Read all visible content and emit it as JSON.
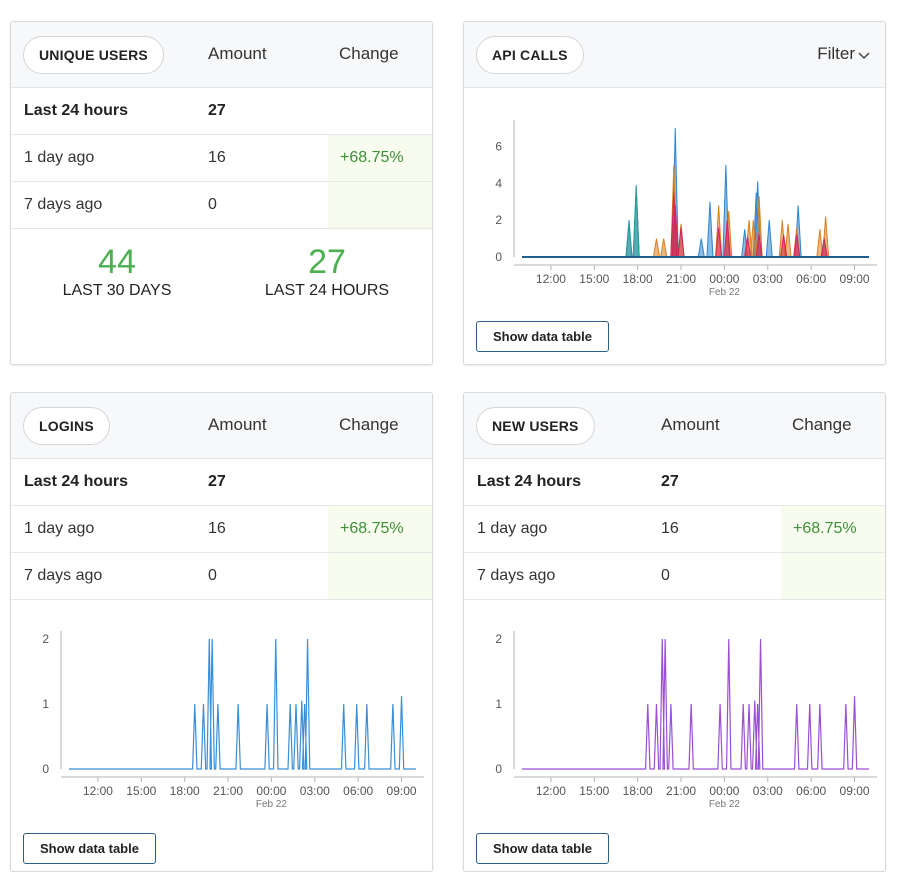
{
  "colors": {
    "accent_green": "#4caf50",
    "change_green": "#3f8f3a",
    "logins_line": "#3a8fd6",
    "newusers_line": "#9b4fd1",
    "button_border": "#2b5f8c"
  },
  "unique_users": {
    "title": "UNIQUE USERS",
    "col_amount": "Amount",
    "col_change": "Change",
    "rows": [
      {
        "label": "Last 24 hours",
        "amount": "27",
        "change": ""
      },
      {
        "label": "1 day ago",
        "amount": "16",
        "change": "+68.75%"
      },
      {
        "label": "7 days ago",
        "amount": "0",
        "change": ""
      }
    ],
    "stats": [
      {
        "value": "44",
        "label": "LAST 30 DAYS"
      },
      {
        "value": "27",
        "label": "LAST 24 HOURS"
      }
    ]
  },
  "api_calls": {
    "title": "API CALLS",
    "filter_label": "Filter",
    "filter_icon": "chevron-down-icon",
    "button": "Show data table"
  },
  "logins": {
    "title": "LOGINS",
    "col_amount": "Amount",
    "col_change": "Change",
    "rows": [
      {
        "label": "Last 24 hours",
        "amount": "27",
        "change": ""
      },
      {
        "label": "1 day ago",
        "amount": "16",
        "change": "+68.75%"
      },
      {
        "label": "7 days ago",
        "amount": "0",
        "change": ""
      }
    ],
    "button": "Show data table"
  },
  "new_users": {
    "title": "NEW USERS",
    "col_amount": "Amount",
    "col_change": "Change",
    "rows": [
      {
        "label": "Last 24 hours",
        "amount": "27",
        "change": ""
      },
      {
        "label": "1 day ago",
        "amount": "16",
        "change": "+68.75%"
      },
      {
        "label": "7 days ago",
        "amount": "0",
        "change": ""
      }
    ],
    "button": "Show data table"
  },
  "chart_data": [
    {
      "id": "api",
      "type": "area",
      "x_ticks": [
        "12:00",
        "15:00",
        "18:00",
        "21:00",
        "00:00",
        "03:00",
        "06:00",
        "09:00"
      ],
      "x_sublabel": "Feb 22",
      "y_ticks": [
        0,
        2,
        4,
        6
      ],
      "ylim": [
        0,
        7
      ],
      "x_range_hours": [
        10,
        34
      ],
      "series": [
        {
          "color": "#2e86cf",
          "points": [
            [
              17.4,
              2
            ],
            [
              17.9,
              3.9
            ],
            [
              20.6,
              7
            ],
            [
              22.4,
              1
            ],
            [
              23.0,
              3
            ],
            [
              24.1,
              5
            ],
            [
              25.4,
              1.5
            ],
            [
              26.2,
              3.5
            ],
            [
              26.3,
              4.1
            ],
            [
              27.1,
              2
            ],
            [
              29.1,
              2.8
            ],
            [
              30.9,
              1
            ]
          ]
        },
        {
          "color": "#2a9d8f",
          "points": [
            [
              17.4,
              1.8
            ],
            [
              17.9,
              3.8
            ]
          ]
        },
        {
          "color": "#d9801f",
          "points": [
            [
              19.3,
              1
            ],
            [
              19.8,
              1
            ],
            [
              20.5,
              5
            ],
            [
              21.0,
              1.8
            ],
            [
              23.6,
              2.8
            ],
            [
              24.3,
              2.5
            ],
            [
              25.7,
              2
            ],
            [
              26.0,
              2
            ],
            [
              26.4,
              3.3
            ],
            [
              28.0,
              2
            ],
            [
              28.4,
              1.8
            ],
            [
              29.0,
              1.6
            ],
            [
              30.6,
              1.5
            ],
            [
              31.0,
              2.2
            ]
          ]
        },
        {
          "color": "#d3245a",
          "points": [
            [
              20.5,
              3.5
            ],
            [
              20.6,
              2.8
            ],
            [
              21.0,
              1.6
            ],
            [
              23.6,
              1.6
            ],
            [
              24.2,
              2
            ],
            [
              25.6,
              1.1
            ],
            [
              26.4,
              1.2
            ],
            [
              28.1,
              1.2
            ],
            [
              29.0,
              1.2
            ],
            [
              30.9,
              1
            ]
          ]
        }
      ]
    },
    {
      "id": "logins",
      "type": "line",
      "x_ticks": [
        "12:00",
        "15:00",
        "18:00",
        "21:00",
        "00:00",
        "03:00",
        "06:00",
        "09:00"
      ],
      "x_sublabel": "Feb 22",
      "y_ticks": [
        0,
        1,
        2
      ],
      "ylim": [
        0,
        2
      ],
      "x_range_hours": [
        10,
        34
      ],
      "peaks": [
        [
          18.7,
          1
        ],
        [
          19.3,
          1
        ],
        [
          19.7,
          2
        ],
        [
          19.9,
          2
        ],
        [
          20.3,
          1
        ],
        [
          21.7,
          1
        ],
        [
          23.7,
          1
        ],
        [
          24.3,
          2
        ],
        [
          25.3,
          1
        ],
        [
          25.7,
          1
        ],
        [
          26.1,
          1.05
        ],
        [
          26.3,
          1
        ],
        [
          26.5,
          2
        ],
        [
          29.0,
          1
        ],
        [
          29.9,
          1
        ],
        [
          30.6,
          1
        ],
        [
          32.4,
          1
        ],
        [
          33.0,
          1.12
        ]
      ]
    },
    {
      "id": "new_users",
      "type": "line",
      "x_ticks": [
        "12:00",
        "15:00",
        "18:00",
        "21:00",
        "00:00",
        "03:00",
        "06:00",
        "09:00"
      ],
      "x_sublabel": "Feb 22",
      "y_ticks": [
        0,
        1,
        2
      ],
      "ylim": [
        0,
        2
      ],
      "x_range_hours": [
        10,
        34
      ],
      "peaks": [
        [
          18.7,
          1
        ],
        [
          19.3,
          1
        ],
        [
          19.7,
          2
        ],
        [
          19.9,
          2
        ],
        [
          20.3,
          1
        ],
        [
          21.7,
          1
        ],
        [
          23.7,
          1
        ],
        [
          24.3,
          2
        ],
        [
          25.3,
          1
        ],
        [
          25.7,
          1
        ],
        [
          26.1,
          1.05
        ],
        [
          26.3,
          1
        ],
        [
          26.5,
          2
        ],
        [
          29.0,
          1
        ],
        [
          29.9,
          1
        ],
        [
          30.6,
          1
        ],
        [
          32.4,
          1
        ],
        [
          33.0,
          1.12
        ]
      ]
    }
  ]
}
